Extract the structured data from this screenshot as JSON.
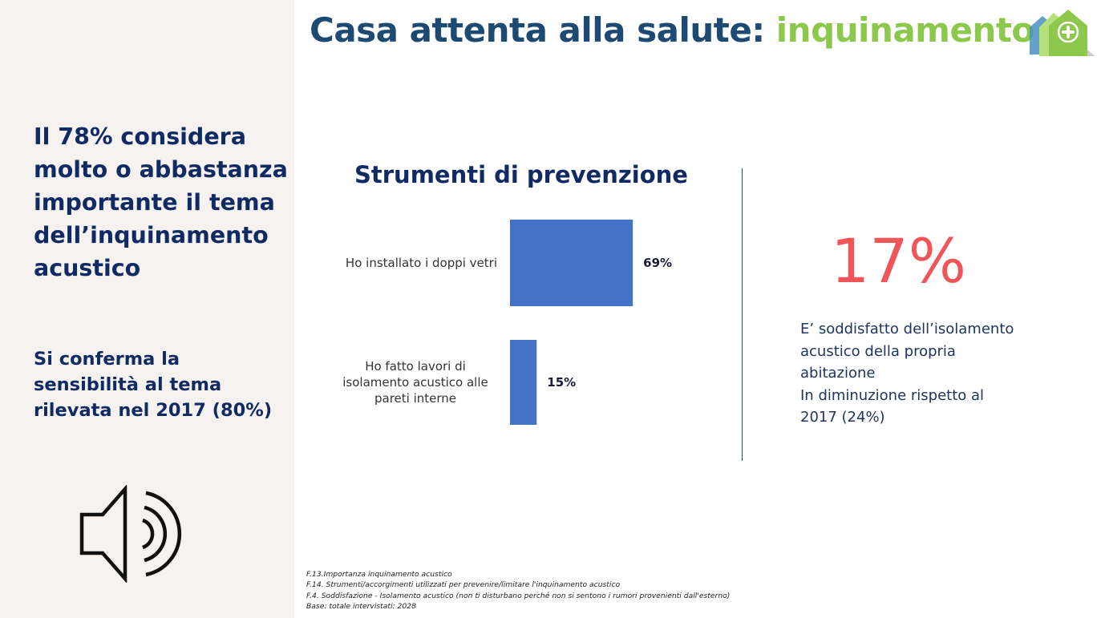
{
  "page": {
    "title_main": "Casa attenta alla salute:",
    "title_accent": "inquinamento",
    "accent_color": "#8cc84b",
    "title_color": "#1d4a72"
  },
  "sidebar": {
    "headline": "Il 78% considera molto o abbastanza importante il tema dell’inquinamento acustico",
    "subhead": "Si conferma la sensibilità al tema rilevata nel 2017 (80%)",
    "icon": "speaker-volume-icon"
  },
  "chart_data": {
    "type": "bar",
    "orientation": "horizontal",
    "title": "Strumenti di prevenzione",
    "categories": [
      [
        "Ho installato i doppi vetri"
      ],
      [
        "Ho fatto lavori di",
        "isolamento acustico alle",
        "pareti interne"
      ]
    ],
    "values": [
      69,
      15
    ],
    "value_labels": [
      "69%",
      "15%"
    ],
    "xlim": [
      0,
      100
    ],
    "bar_color": "#4472c4",
    "grid": false
  },
  "stat": {
    "value": "17%",
    "color": "#f0555a",
    "lines": [
      "E’ soddisfatto dell’isolamento",
      "acustico della propria",
      "abitazione",
      "In diminuzione rispetto al",
      "2017 (24%)"
    ]
  },
  "footnotes": [
    "F.13.Importanza inquinamento acustico",
    "F.14. Strumenti/accorgimenti utilizzati per prevenire/limitare l'inquinamento acustico",
    "F.4. Soddisfazione - Isolamento acustico (non ti disturbano perché non si sentono i rumori provenienti dall'esterno)",
    "Base: totale intervistati: 2028"
  ]
}
